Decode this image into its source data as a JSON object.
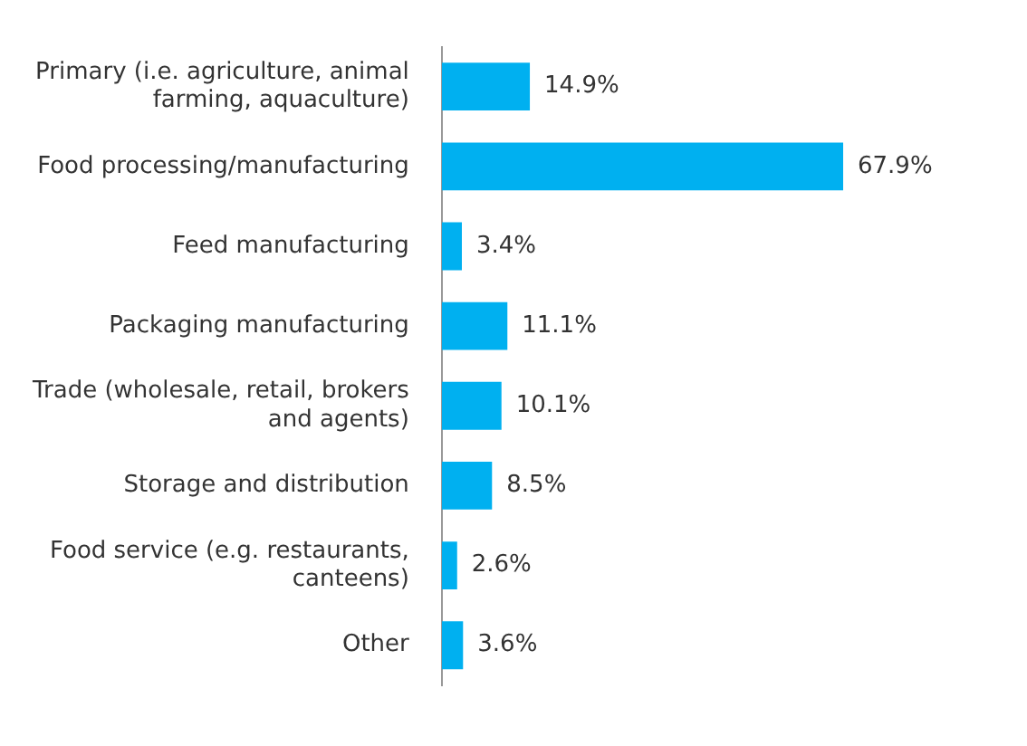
{
  "chart_data": {
    "type": "bar",
    "orientation": "horizontal",
    "categories": [
      "Primary (i.e. agriculture, animal farming, aquaculture)",
      "Food processing/manufacturing",
      "Feed manufacturing",
      "Packaging manufacturing",
      "Trade (wholesale, retail, brokers and agents)",
      "Storage and distribution",
      "Food service (e.g. restaurants, canteens)",
      "Other"
    ],
    "values": [
      14.9,
      67.9,
      3.4,
      11.1,
      10.1,
      8.5,
      2.6,
      3.6
    ],
    "value_labels": [
      "14.9%",
      "67.9%",
      "3.4%",
      "11.1%",
      "10.1%",
      "8.5%",
      "2.6%",
      "3.6%"
    ],
    "color": "#00b0f0",
    "legend": false,
    "tick_labels": "y"
  }
}
